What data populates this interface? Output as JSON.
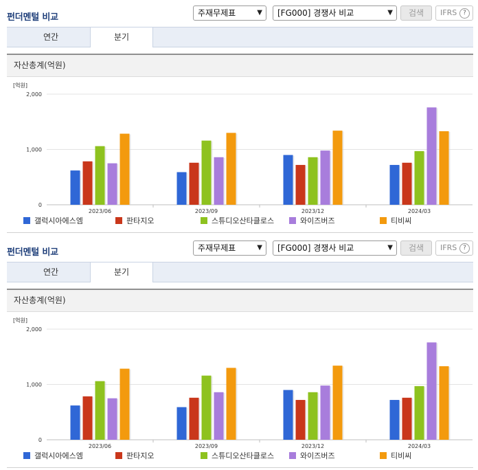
{
  "panels": [
    {
      "title": "펀더멘털 비교",
      "select1": "주재무제표",
      "select2": "[FG000] 경쟁사 비교",
      "search_label": "검색",
      "ifrs_label": "IFRS",
      "help_glyph": "?",
      "tabs": [
        "연간",
        "분기"
      ],
      "active_tab": "분기",
      "section_title": "자산총계(억원)"
    },
    {
      "title": "펀더멘털 비교",
      "select1": "주재무제표",
      "select2": "[FG000] 경쟁사 비교",
      "search_label": "검색",
      "ifrs_label": "IFRS",
      "help_glyph": "?",
      "tabs": [
        "연간",
        "분기"
      ],
      "active_tab": "분기",
      "section_title": "자산총계(억원)"
    }
  ],
  "chart_data": [
    {
      "type": "bar",
      "unit_label": "[억원]",
      "categories": [
        "2023/06",
        "2023/09",
        "2023/12",
        "2024/03"
      ],
      "ylim": [
        0,
        2000
      ],
      "yticks": [
        0,
        1000,
        2000
      ],
      "ytick_labels": [
        "0",
        "1,000",
        "2,000"
      ],
      "grid": true,
      "legend_position": "bottom",
      "series": [
        {
          "name": "갤럭시아에스엠",
          "color": "#2f67d6",
          "values": [
            620,
            590,
            900,
            720
          ]
        },
        {
          "name": "판타지오",
          "color": "#c9371b",
          "values": [
            785,
            760,
            720,
            760
          ]
        },
        {
          "name": "스튜디오산타클로스",
          "color": "#8ec21f",
          "values": [
            1060,
            1160,
            860,
            970
          ]
        },
        {
          "name": "와이즈버즈",
          "color": "#a87ddc",
          "values": [
            750,
            860,
            980,
            1760
          ]
        },
        {
          "name": "티비씨",
          "color": "#f39a0e",
          "values": [
            1285,
            1300,
            1340,
            1330
          ]
        }
      ]
    },
    {
      "type": "bar",
      "unit_label": "[억원]",
      "categories": [
        "2023/06",
        "2023/09",
        "2023/12",
        "2024/03"
      ],
      "ylim": [
        0,
        2000
      ],
      "yticks": [
        0,
        1000,
        2000
      ],
      "ytick_labels": [
        "0",
        "1,000",
        "2,000"
      ],
      "grid": true,
      "legend_position": "bottom",
      "series": [
        {
          "name": "갤럭시아에스엠",
          "color": "#2f67d6",
          "values": [
            620,
            590,
            900,
            720
          ]
        },
        {
          "name": "판타지오",
          "color": "#c9371b",
          "values": [
            785,
            760,
            720,
            760
          ]
        },
        {
          "name": "스튜디오산타클로스",
          "color": "#8ec21f",
          "values": [
            1060,
            1160,
            860,
            970
          ]
        },
        {
          "name": "와이즈버즈",
          "color": "#a87ddc",
          "values": [
            750,
            860,
            980,
            1760
          ]
        },
        {
          "name": "티비씨",
          "color": "#f39a0e",
          "values": [
            1285,
            1300,
            1340,
            1330
          ]
        }
      ]
    }
  ]
}
